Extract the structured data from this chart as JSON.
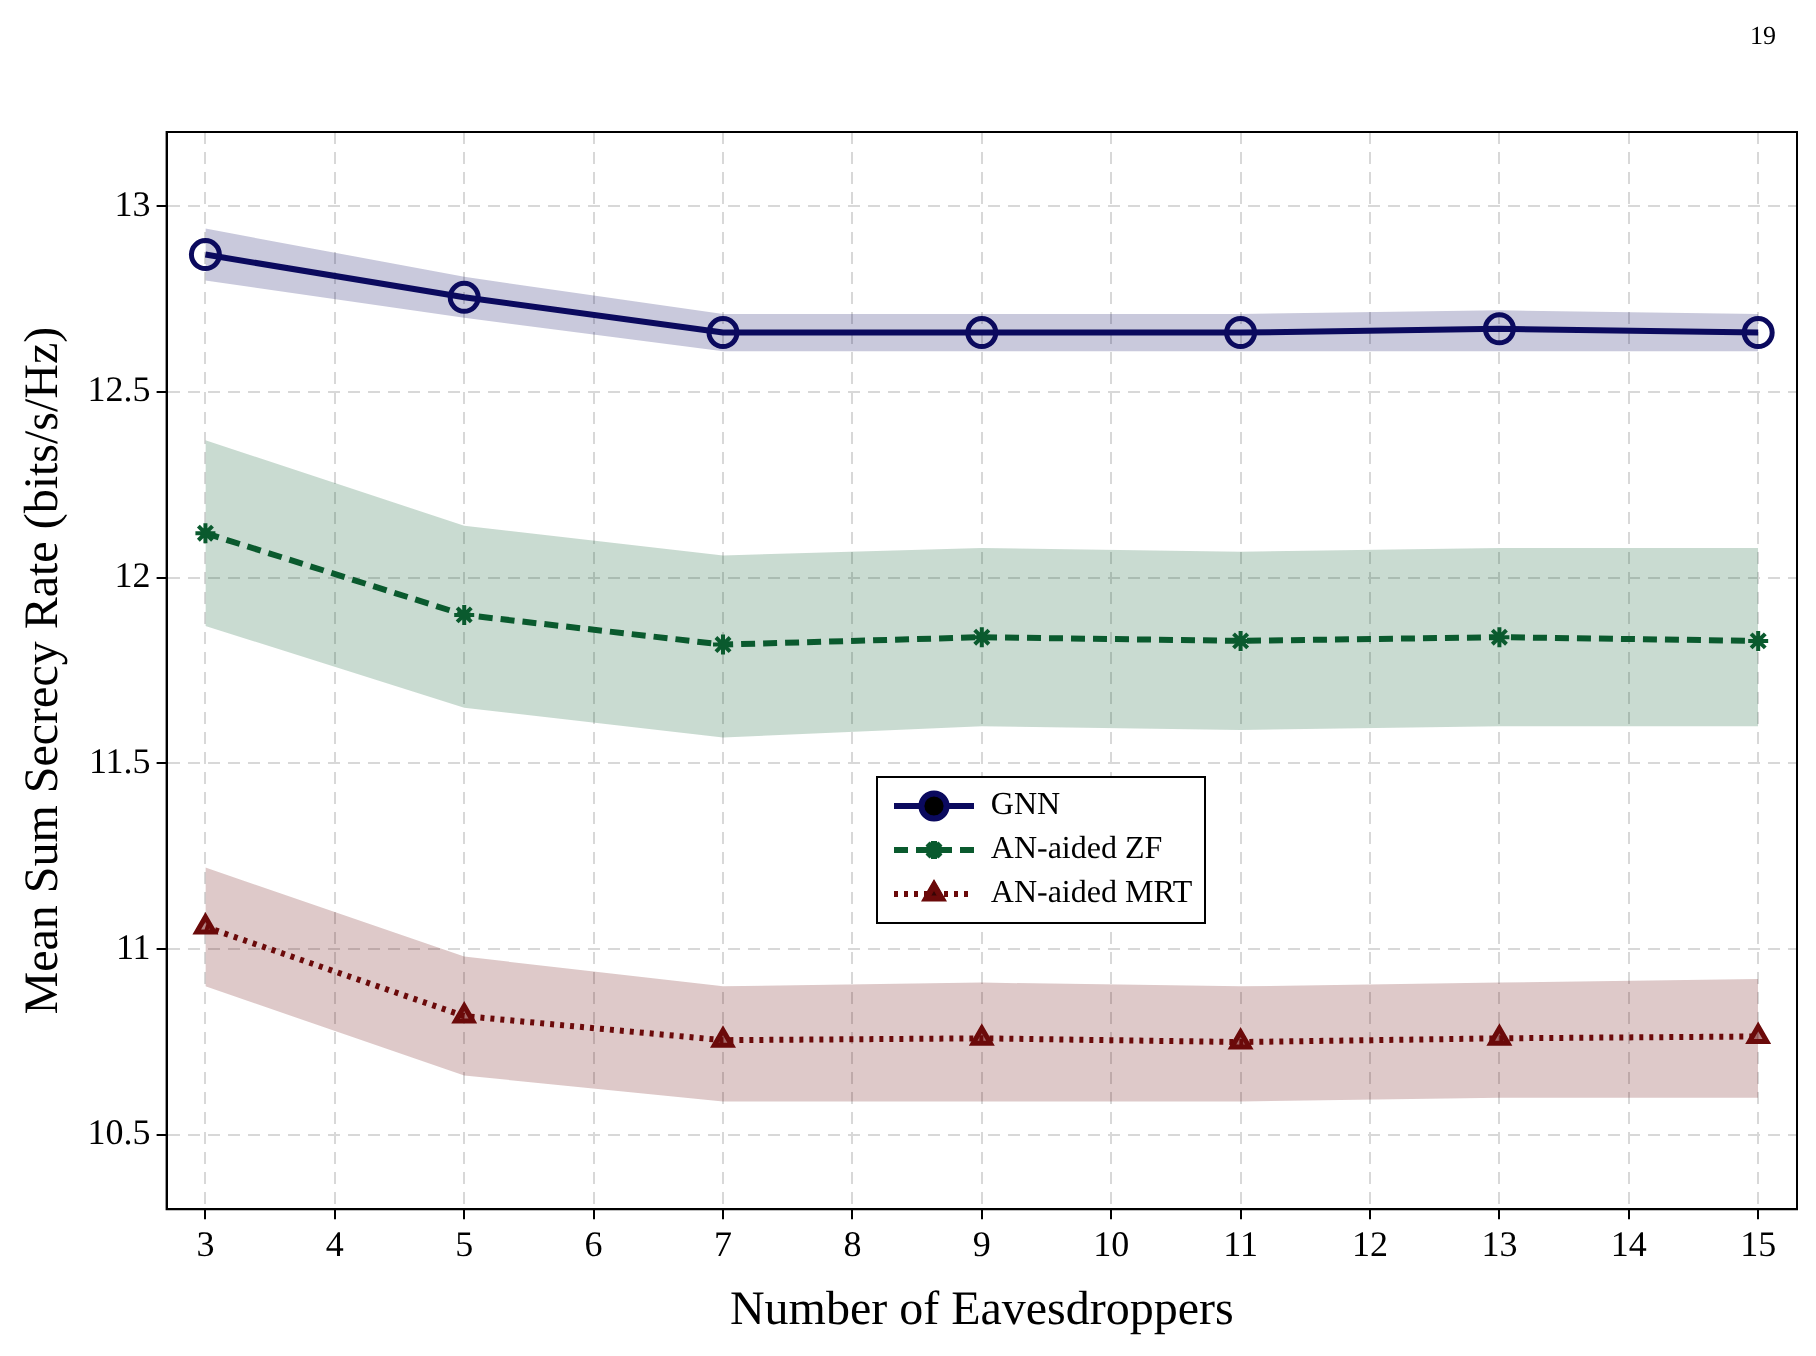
{
  "chart_data": {
    "type": "line",
    "xlabel": "Number of Eavesdroppers",
    "ylabel": "Mean Sum Secrecy Rate (bits/s/Hz)",
    "x": [
      3,
      5,
      7,
      9,
      11,
      13,
      15
    ],
    "series": [
      {
        "name": "GNN",
        "color": "#0b0a5e",
        "marker": "circle",
        "line_style": "solid",
        "values": [
          12.87,
          12.755,
          12.66,
          12.66,
          12.66,
          12.67,
          12.66
        ],
        "lower": [
          12.8,
          12.7,
          12.61,
          12.61,
          12.61,
          12.61,
          12.61
        ],
        "upper": [
          12.94,
          12.81,
          12.71,
          12.71,
          12.71,
          12.72,
          12.71
        ]
      },
      {
        "name": "AN-aided ZF",
        "color": "#0a5a2e",
        "marker": "cross",
        "line_style": "dashed",
        "values": [
          12.12,
          11.9,
          11.82,
          11.84,
          11.83,
          11.84,
          11.83
        ],
        "lower": [
          11.87,
          11.65,
          11.57,
          11.6,
          11.59,
          11.6,
          11.6
        ],
        "upper": [
          12.37,
          12.14,
          12.06,
          12.08,
          12.07,
          12.08,
          12.08
        ]
      },
      {
        "name": "AN-aided MRT",
        "color": "#6b0a0a",
        "marker": "triangle",
        "line_style": "dotted",
        "values": [
          11.06,
          10.82,
          10.755,
          10.76,
          10.75,
          10.76,
          10.765
        ],
        "lower": [
          10.9,
          10.66,
          10.59,
          10.59,
          10.59,
          10.6,
          10.6
        ],
        "upper": [
          11.22,
          10.98,
          10.9,
          10.91,
          10.9,
          10.91,
          10.92
        ]
      }
    ],
    "xlim": [
      2.7,
      15.3
    ],
    "xticks": [
      3,
      4,
      5,
      6,
      7,
      8,
      9,
      10,
      11,
      12,
      13,
      14,
      15
    ],
    "ylim": [
      10.3,
      13.2
    ],
    "yticks": [
      10.5,
      11,
      11.5,
      12,
      12.5,
      13
    ],
    "grid": true,
    "legend": "center",
    "annotations": [
      "19"
    ]
  }
}
